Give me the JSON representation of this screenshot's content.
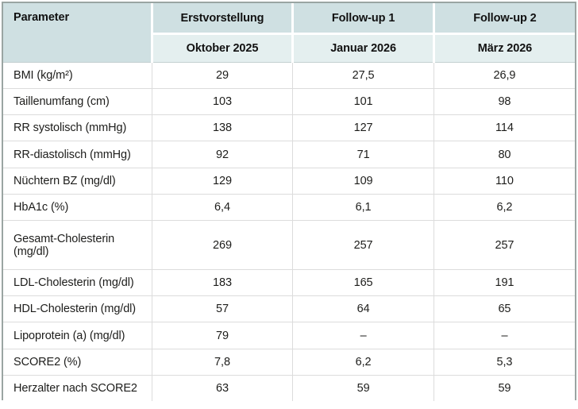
{
  "chart_data": {
    "type": "table",
    "header": {
      "parameter": "Parameter",
      "visits": [
        {
          "title": "Erstvorstellung",
          "date": "Oktober 2025"
        },
        {
          "title": "Follow-up 1",
          "date": "Januar 2026"
        },
        {
          "title": "Follow-up 2",
          "date": "März 2026"
        }
      ]
    },
    "rows": [
      {
        "label": "BMI (kg/m²)",
        "values": [
          "29",
          "27,5",
          "26,9"
        ]
      },
      {
        "label": "Taillenumfang (cm)",
        "values": [
          "103",
          "101",
          "98"
        ]
      },
      {
        "label": "RR systolisch (mmHg)",
        "values": [
          "138",
          "127",
          "114"
        ]
      },
      {
        "label": "RR-diastolisch (mmHg)",
        "values": [
          "92",
          "71",
          "80"
        ]
      },
      {
        "label": "Nüchtern BZ (mg/dl)",
        "values": [
          "129",
          "109",
          "110"
        ]
      },
      {
        "label": "HbA1c (%)",
        "values": [
          "6,4",
          "6,1",
          "6,2"
        ]
      },
      {
        "label": "Gesamt-Cholesterin (mg/dl)",
        "values": [
          "269",
          "257",
          "257"
        ]
      },
      {
        "label": "LDL-Cholesterin (mg/dl)",
        "values": [
          "183",
          "165",
          "191"
        ]
      },
      {
        "label": "HDL-Cholesterin (mg/dl)",
        "values": [
          "57",
          "64",
          "65"
        ]
      },
      {
        "label": "Lipoprotein (a) (mg/dl)",
        "values": [
          "79",
          "–",
          "–"
        ]
      },
      {
        "label": "SCORE2 (%)",
        "values": [
          "7,8",
          "6,2",
          "5,3"
        ]
      },
      {
        "label": "Herzalter nach SCORE2",
        "values": [
          "63",
          "59",
          "59"
        ]
      }
    ]
  },
  "colors": {
    "header_row1_bg": "#cfe0e2",
    "header_row2_bg": "#e4efef",
    "header_bottom_line": "#c3d0d1",
    "outer_border": "#9aa5a2",
    "row_divider": "#dcdcdc"
  }
}
